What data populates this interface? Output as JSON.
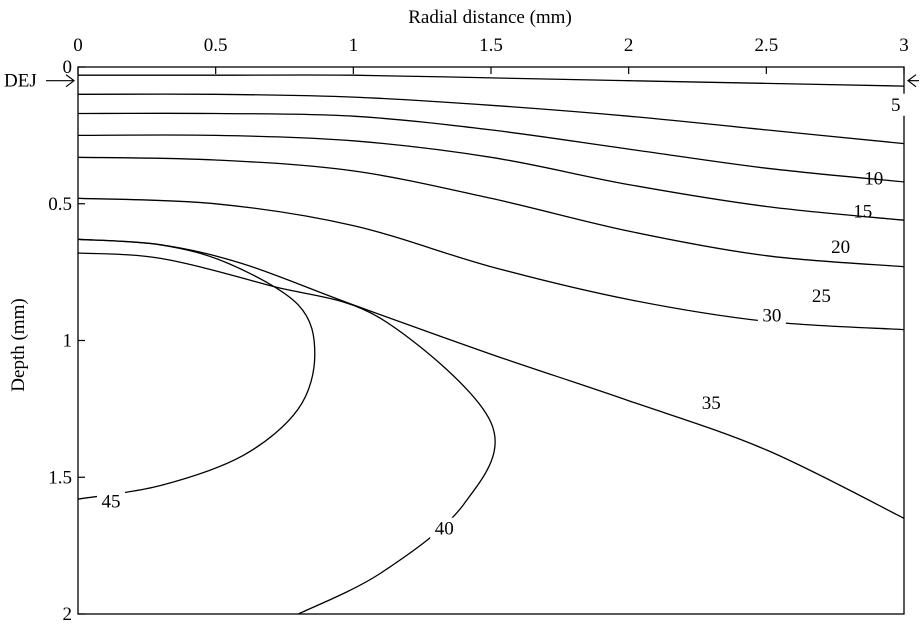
{
  "chart_data": {
    "type": "contour",
    "xlabel": "Radial distance (mm)",
    "ylabel": "Depth (mm)",
    "xlim": [
      0,
      3
    ],
    "ylim": [
      2,
      0
    ],
    "x_axis_position": "top",
    "x_ticks": [
      "0",
      "0.5",
      "1",
      "1.5",
      "2",
      "2.5",
      "3"
    ],
    "y_ticks": [
      "0",
      "0.5",
      "1",
      "1.5",
      "2"
    ],
    "grid": false,
    "legend": "none",
    "dej_marker": {
      "label": "DEJ",
      "depth": 0.05
    },
    "contours": [
      {
        "level": "5",
        "points": [
          [
            0,
            0.03
          ],
          [
            0.5,
            0.03
          ],
          [
            1.0,
            0.03
          ],
          [
            1.5,
            0.04
          ],
          [
            2.0,
            0.05
          ],
          [
            2.5,
            0.06
          ],
          [
            3.0,
            0.07
          ]
        ],
        "label_at": [
          2.97,
          0.16
        ]
      },
      {
        "level": "10",
        "points": [
          [
            0,
            0.1
          ],
          [
            0.5,
            0.1
          ],
          [
            1.0,
            0.11
          ],
          [
            1.5,
            0.14
          ],
          [
            2.0,
            0.18
          ],
          [
            2.5,
            0.23
          ],
          [
            3.0,
            0.28
          ]
        ],
        "label_at": [
          2.89,
          0.43
        ]
      },
      {
        "level": "15",
        "points": [
          [
            0,
            0.17
          ],
          [
            0.5,
            0.17
          ],
          [
            1.0,
            0.18
          ],
          [
            1.5,
            0.23
          ],
          [
            2.0,
            0.3
          ],
          [
            2.5,
            0.37
          ],
          [
            3.0,
            0.42
          ]
        ],
        "label_at": [
          2.85,
          0.55
        ]
      },
      {
        "level": "20",
        "points": [
          [
            0,
            0.25
          ],
          [
            0.5,
            0.25
          ],
          [
            1.0,
            0.27
          ],
          [
            1.5,
            0.33
          ],
          [
            2.0,
            0.43
          ],
          [
            2.5,
            0.51
          ],
          [
            3.0,
            0.56
          ]
        ],
        "label_at": [
          2.77,
          0.68
        ]
      },
      {
        "level": "25",
        "points": [
          [
            0,
            0.33
          ],
          [
            0.5,
            0.34
          ],
          [
            1.0,
            0.38
          ],
          [
            1.5,
            0.48
          ],
          [
            2.0,
            0.6
          ],
          [
            2.5,
            0.69
          ],
          [
            3.0,
            0.73
          ]
        ],
        "label_at": [
          2.7,
          0.86
        ]
      },
      {
        "level": "30",
        "points": [
          [
            0,
            0.48
          ],
          [
            0.5,
            0.5
          ],
          [
            1.0,
            0.58
          ],
          [
            1.5,
            0.73
          ],
          [
            2.0,
            0.85
          ],
          [
            2.5,
            0.93
          ],
          [
            3.0,
            0.96
          ]
        ],
        "label_at": [
          2.52,
          0.93
        ]
      },
      {
        "level": "35",
        "points": [
          [
            0,
            0.63
          ],
          [
            0.3,
            0.65
          ],
          [
            0.6,
            0.72
          ],
          [
            1.0,
            0.87
          ],
          [
            1.5,
            1.05
          ],
          [
            2.0,
            1.22
          ],
          [
            2.5,
            1.4
          ],
          [
            3.0,
            1.65
          ]
        ],
        "label_at": [
          2.3,
          1.25
        ]
      },
      {
        "level": "40",
        "points": [
          [
            0,
            0.68
          ],
          [
            0.3,
            0.7
          ],
          [
            0.7,
            0.8
          ],
          [
            1.1,
            0.92
          ],
          [
            1.5,
            1.3
          ],
          [
            1.4,
            1.6
          ],
          [
            1.1,
            1.85
          ],
          [
            0.8,
            2.0
          ]
        ],
        "label_at": [
          1.33,
          1.71
        ]
      },
      {
        "level": "45",
        "points": [
          [
            0,
            0.63
          ],
          [
            0.3,
            0.65
          ],
          [
            0.55,
            0.72
          ],
          [
            0.8,
            0.87
          ],
          [
            0.86,
            1.05
          ],
          [
            0.8,
            1.25
          ],
          [
            0.6,
            1.42
          ],
          [
            0.3,
            1.53
          ],
          [
            0,
            1.58
          ]
        ],
        "label_at": [
          0.12,
          1.61
        ]
      }
    ]
  }
}
